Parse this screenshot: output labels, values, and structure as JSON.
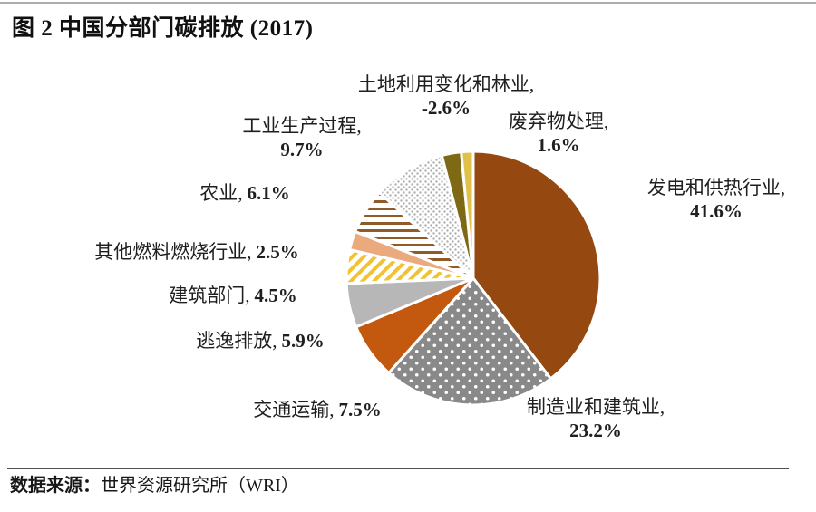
{
  "chart_data": {
    "type": "pie",
    "title": "图 2 中国分部门碳排放 (2017)",
    "source_label": "数据来源：",
    "source_text": "世界资源研究所（WRI）",
    "start_angle_deg": 0,
    "direction": "clockwise",
    "legend_position": "outside-labels",
    "slices": [
      {
        "name": "发电和供热行业",
        "label": "发电和供热行业,",
        "pct": "41.6%",
        "value": 41.6,
        "fill": {
          "type": "solid",
          "color": "#954911"
        }
      },
      {
        "name": "制造业和建筑业",
        "label": "制造业和建筑业,",
        "pct": "23.2%",
        "value": 23.2,
        "fill": {
          "type": "dots",
          "bg": "#898989",
          "fg": "#FFFFFF",
          "r": 1.8,
          "step": 13
        }
      },
      {
        "name": "交通运输",
        "label": "交通运输,",
        "pct": "7.5%",
        "value": 7.5,
        "fill": {
          "type": "solid",
          "color": "#C2590F"
        }
      },
      {
        "name": "逃逸排放",
        "label": "逃逸排放,",
        "pct": "5.9%",
        "value": 5.9,
        "fill": {
          "type": "solid",
          "color": "#B7B7B7"
        }
      },
      {
        "name": "建筑部门",
        "label": "建筑部门,",
        "pct": "4.5%",
        "value": 4.5,
        "fill": {
          "type": "diag-stripes",
          "bg": "#FFFFFF",
          "fg": "#F1C232",
          "w": 4,
          "step": 9
        }
      },
      {
        "name": "其他燃料燃烧行业",
        "label": "其他燃料燃烧行业,",
        "pct": "2.5%",
        "value": 2.5,
        "fill": {
          "type": "solid",
          "color": "#EBA97E"
        }
      },
      {
        "name": "农业",
        "label": "农业,",
        "pct": "6.1%",
        "value": 6.1,
        "fill": {
          "type": "h-stripes",
          "bg": "#FFFFFF",
          "fg": "#8F5B27",
          "w": 3,
          "step": 8
        }
      },
      {
        "name": "工业生产过程",
        "label": "工业生产过程,",
        "pct": "9.7%",
        "value": 9.7,
        "fill": {
          "type": "dots",
          "bg": "#FFFFFF",
          "fg": "#AFAFAF",
          "r": 1.2,
          "step": 6
        }
      },
      {
        "name": "土地利用变化和林业",
        "label": "土地利用变化和林业,",
        "pct": "-2.6%",
        "value": -2.6,
        "fill": {
          "type": "solid",
          "color": "#7E6A15"
        }
      },
      {
        "name": "废弃物处理",
        "label": "废弃物处理,",
        "pct": "1.6%",
        "value": 1.6,
        "fill": {
          "type": "solid",
          "color": "#E0C14A"
        }
      }
    ]
  }
}
